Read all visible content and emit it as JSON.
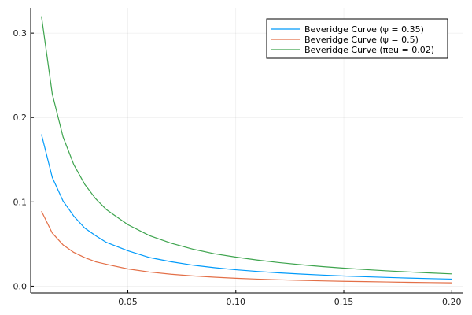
{
  "chart_data": {
    "type": "line",
    "title": "",
    "xlabel": "",
    "ylabel": "",
    "xlim": [
      0.005,
      0.205
    ],
    "ylim": [
      -0.008,
      0.33
    ],
    "grid": true,
    "legend_position": "top-right",
    "x_ticks": [
      {
        "value": 0.05,
        "label": "0.05"
      },
      {
        "value": 0.1,
        "label": "0.10"
      },
      {
        "value": 0.15,
        "label": "0.15"
      },
      {
        "value": 0.2,
        "label": "0.20"
      }
    ],
    "y_ticks": [
      {
        "value": 0.0,
        "label": "0.0"
      },
      {
        "value": 0.1,
        "label": "0.1"
      },
      {
        "value": 0.2,
        "label": "0.2"
      },
      {
        "value": 0.3,
        "label": "0.3"
      }
    ],
    "x": [
      0.01,
      0.015,
      0.02,
      0.025,
      0.03,
      0.035,
      0.04,
      0.05,
      0.06,
      0.07,
      0.08,
      0.09,
      0.1,
      0.11,
      0.12,
      0.13,
      0.14,
      0.15,
      0.16,
      0.17,
      0.18,
      0.19,
      0.2
    ],
    "series": [
      {
        "name": "Beveridge Curve (ψ = 0.35)",
        "color": "#009AFA",
        "values": [
          0.18,
          0.129,
          0.101,
          0.083,
          0.069,
          0.06,
          0.052,
          0.042,
          0.034,
          0.029,
          0.025,
          0.022,
          0.0195,
          0.0175,
          0.0158,
          0.0144,
          0.0132,
          0.0121,
          0.0112,
          0.0104,
          0.0096,
          0.009,
          0.0084
        ]
      },
      {
        "name": "Beveridge Curve (ψ = 0.5)",
        "color": "#E36F47",
        "values": [
          0.089,
          0.063,
          0.049,
          0.04,
          0.034,
          0.029,
          0.026,
          0.0205,
          0.0168,
          0.0142,
          0.0122,
          0.0107,
          0.0094,
          0.0084,
          0.0076,
          0.0069,
          0.0063,
          0.0058,
          0.0054,
          0.005,
          0.0046,
          0.0043,
          0.004
        ]
      },
      {
        "name": "Beveridge Curve (πeu = 0.02)",
        "color": "#3EA44E",
        "values": [
          0.32,
          0.228,
          0.177,
          0.144,
          0.121,
          0.104,
          0.091,
          0.073,
          0.06,
          0.051,
          0.044,
          0.0385,
          0.0345,
          0.031,
          0.028,
          0.0255,
          0.0233,
          0.0214,
          0.0197,
          0.0182,
          0.0169,
          0.0157,
          0.0146
        ]
      }
    ]
  }
}
